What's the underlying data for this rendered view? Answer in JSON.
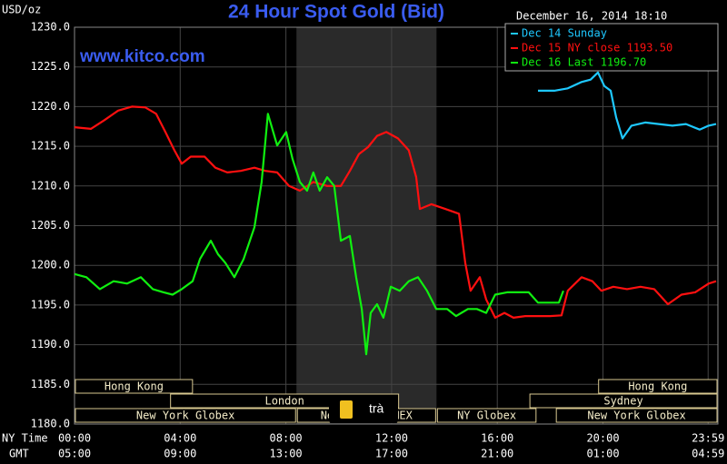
{
  "chart_data": {
    "type": "line",
    "title": "24 Hour Spot Gold (Bid)",
    "timestamp": "December 16, 2014 18:10",
    "website": "www.kitco.com",
    "y_label": "USD/oz",
    "x_label": "NY Time",
    "x2_label": "GMT",
    "overlay_text": "trà",
    "xlim": [
      0,
      24.35
    ],
    "xticks": [
      {
        "value": 0,
        "label": "00:00"
      },
      {
        "value": 4,
        "label": "04:00"
      },
      {
        "value": 8,
        "label": "08:00"
      },
      {
        "value": 12,
        "label": "12:00"
      },
      {
        "value": 16,
        "label": "16:00"
      },
      {
        "value": 20,
        "label": "20:00"
      },
      {
        "value": 23.98,
        "label": "23:59"
      }
    ],
    "x2_tick_labels": [
      "05:00",
      "09:00",
      "13:00",
      "17:00",
      "21:00",
      "01:00",
      "04:59"
    ],
    "ylim": [
      1180,
      1230
    ],
    "yticks": [
      {
        "value": 1180,
        "label": "1180.0"
      },
      {
        "value": 1185,
        "label": "1185.0"
      },
      {
        "value": 1190,
        "label": "1190.0"
      },
      {
        "value": 1195,
        "label": "1195.0"
      },
      {
        "value": 1200,
        "label": "1200.0"
      },
      {
        "value": 1205,
        "label": "1205.0"
      },
      {
        "value": 1210,
        "label": "1210.0"
      },
      {
        "value": 1215,
        "label": "1215.0"
      },
      {
        "value": 1220,
        "label": "1220.0"
      },
      {
        "value": 1225,
        "label": "1225.0"
      },
      {
        "value": 1230,
        "label": "1230.0"
      }
    ],
    "grid": true,
    "shaded_region": [
      8.4,
      13.7
    ],
    "sessions": [
      {
        "name": "Hong Kong",
        "row": 0,
        "start": 0,
        "end": 4.5
      },
      {
        "name": "Hong Kong",
        "row": 0,
        "start": 19.8,
        "end": 24.35
      },
      {
        "name": "London",
        "row": 1,
        "start": 3.6,
        "end": 12.3
      },
      {
        "name": "Sydney",
        "row": 1,
        "start": 17.2,
        "end": 24.35
      },
      {
        "name": "New York Globex",
        "row": 2,
        "start": 0,
        "end": 8.4
      },
      {
        "name": "New York COMEX",
        "row": 2,
        "start": 8.4,
        "end": 13.7
      },
      {
        "name": "NY Globex",
        "row": 2,
        "start": 13.7,
        "end": 17.5
      },
      {
        "name": "New York Globex",
        "row": 2,
        "start": 18.2,
        "end": 24.35
      }
    ],
    "series": [
      {
        "name": "Dec 14 Sunday",
        "color": "#1ec8ff",
        "x": [
          17.54,
          18.16,
          18.67,
          19.19,
          19.53,
          19.81,
          20.05,
          20.29,
          20.5,
          20.74,
          21.08,
          21.6,
          22.11,
          22.63,
          23.14,
          23.66,
          24.0,
          24.28
        ],
        "values": [
          1222.0,
          1222.0,
          1222.3,
          1223.1,
          1223.4,
          1224.3,
          1222.6,
          1222.0,
          1218.6,
          1216.0,
          1217.6,
          1218.0,
          1217.8,
          1217.6,
          1217.8,
          1217.1,
          1217.6,
          1217.8
        ]
      },
      {
        "name": "Dec 15 NY close 1193.50",
        "color": "#ff1010",
        "x": [
          0,
          0.62,
          1.13,
          1.65,
          2.17,
          2.68,
          3.09,
          3.44,
          3.78,
          4.06,
          4.4,
          4.92,
          5.33,
          5.78,
          6.29,
          6.81,
          7.22,
          7.67,
          8.12,
          8.53,
          9.04,
          9.56,
          10.08,
          10.42,
          10.76,
          11.11,
          11.45,
          11.8,
          12.24,
          12.65,
          12.93,
          13.07,
          13.51,
          14.03,
          14.55,
          14.79,
          14.99,
          15.34,
          15.58,
          15.92,
          16.27,
          16.61,
          17.06,
          17.47,
          17.99,
          18.43,
          18.67,
          19.19,
          19.6,
          19.94,
          20.39,
          20.91,
          21.42,
          21.94,
          22.46,
          22.97,
          23.49,
          24.0,
          24.28
        ],
        "values": [
          1217.4,
          1217.2,
          1218.3,
          1219.5,
          1220.0,
          1219.9,
          1219.1,
          1216.8,
          1214.5,
          1212.8,
          1213.7,
          1213.7,
          1212.3,
          1211.7,
          1211.9,
          1212.3,
          1211.9,
          1211.7,
          1210.0,
          1209.4,
          1210.5,
          1210.0,
          1210.0,
          1211.9,
          1214.0,
          1214.9,
          1216.3,
          1216.8,
          1216.0,
          1214.5,
          1211.1,
          1207.1,
          1207.7,
          1207.1,
          1206.5,
          1200.3,
          1196.8,
          1198.5,
          1195.7,
          1193.4,
          1194.0,
          1193.4,
          1193.6,
          1193.6,
          1193.6,
          1193.7,
          1196.8,
          1198.5,
          1198.0,
          1196.8,
          1197.3,
          1197.0,
          1197.3,
          1197.0,
          1195.1,
          1196.3,
          1196.6,
          1197.7,
          1198.0
        ]
      },
      {
        "name": "Dec 16 Last 1196.70",
        "color": "#10f010",
        "x": [
          0,
          0.45,
          0.96,
          1.48,
          1.99,
          2.51,
          2.96,
          3.37,
          3.71,
          4.06,
          4.47,
          4.75,
          5.16,
          5.43,
          5.71,
          6.05,
          6.4,
          6.81,
          7.08,
          7.32,
          7.67,
          8.01,
          8.25,
          8.53,
          8.8,
          9.04,
          9.28,
          9.56,
          9.83,
          10.08,
          10.42,
          10.66,
          10.87,
          11.04,
          11.21,
          11.45,
          11.69,
          11.97,
          12.31,
          12.65,
          13.0,
          13.34,
          13.69,
          14.1,
          14.44,
          14.89,
          15.23,
          15.58,
          15.92,
          16.37,
          16.78,
          17.19,
          17.54,
          17.99,
          18.33,
          18.5
        ],
        "values": [
          1198.9,
          1198.5,
          1197.0,
          1198.0,
          1197.7,
          1198.5,
          1197.0,
          1196.6,
          1196.3,
          1197.0,
          1198.0,
          1200.8,
          1203.1,
          1201.4,
          1200.3,
          1198.5,
          1200.8,
          1204.8,
          1210.5,
          1219.1,
          1215.1,
          1216.8,
          1213.4,
          1210.5,
          1209.4,
          1211.7,
          1209.4,
          1211.1,
          1210.0,
          1203.1,
          1203.7,
          1198.5,
          1194.5,
          1188.8,
          1194.0,
          1195.1,
          1193.4,
          1197.3,
          1196.8,
          1198.0,
          1198.5,
          1196.8,
          1194.5,
          1194.5,
          1193.6,
          1194.5,
          1194.5,
          1194.0,
          1196.3,
          1196.6,
          1196.6,
          1196.6,
          1195.3,
          1195.3,
          1195.3,
          1196.8
        ]
      }
    ]
  }
}
